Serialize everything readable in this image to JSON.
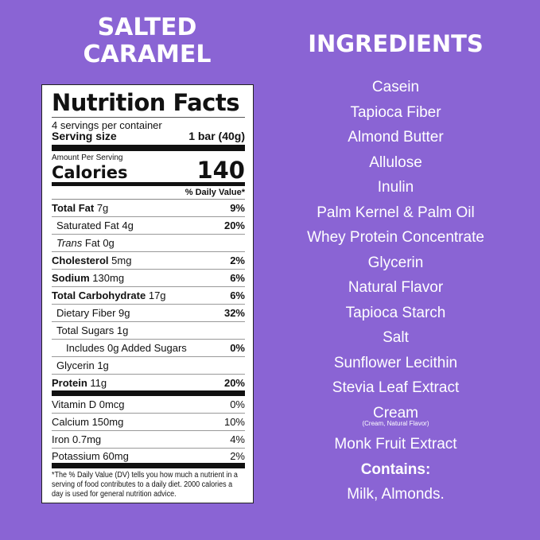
{
  "flavor": "SALTED CARAMEL",
  "label": {
    "title": "Nutrition Facts",
    "servings": "4 servings per container",
    "serving_size_label": "Serving size",
    "serving_size": "1 bar (40g)",
    "amount_per_serving": "Amount Per Serving",
    "calories_label": "Calories",
    "calories": "140",
    "dv_header": "% Daily Value*",
    "rows": [
      {
        "name": "Total Fat",
        "amount": "7g",
        "dv": "9%"
      },
      {
        "name": "Saturated Fat",
        "amount": "4g",
        "dv": "20%"
      },
      {
        "name": "Trans",
        "name2": "Fat",
        "amount": "0g",
        "dv": ""
      },
      {
        "name": "Cholesterol",
        "amount": "5mg",
        "dv": "2%"
      },
      {
        "name": "Sodium",
        "amount": "130mg",
        "dv": "6%"
      },
      {
        "name": "Total Carbohydrate",
        "amount": "17g",
        "dv": "6%"
      },
      {
        "name": "Dietary Fiber",
        "amount": "9g",
        "dv": "32%"
      },
      {
        "name": "Total Sugars",
        "amount": "1g",
        "dv": ""
      },
      {
        "name": "Includes 0g Added Sugars",
        "amount": "",
        "dv": "0%"
      },
      {
        "name": "Glycerin",
        "amount": "1g",
        "dv": ""
      },
      {
        "name": "Protein",
        "amount": "11g",
        "dv": "20%"
      }
    ],
    "vitamins": [
      {
        "name": "Vitamin D 0mcg",
        "dv": "0%"
      },
      {
        "name": "Calcium 150mg",
        "dv": "10%"
      },
      {
        "name": "Iron 0.7mg",
        "dv": "4%"
      },
      {
        "name": "Potassium 60mg",
        "dv": "2%"
      }
    ],
    "footnote": "*The % Daily Value (DV) tells you how much a nutrient in a serving of food contributes to a daily diet. 2000 calories a day is used for general nutrition advice."
  },
  "ingredients": {
    "title": "INGREDIENTS",
    "items": [
      "Casein",
      "Tapioca Fiber",
      "Almond Butter",
      "Allulose",
      "Inulin",
      "Palm Kernel & Palm Oil",
      "Whey Protein Concentrate",
      "Glycerin",
      "Natural Flavor",
      "Tapioca Starch",
      "Salt",
      "Sunflower Lecithin",
      "Stevia Leaf Extract",
      "Cream"
    ],
    "cream_note": "(Cream, Natural Flavor)",
    "last": "Monk Fruit Extract",
    "contains_label": "Contains:",
    "contains": "Milk, Almonds."
  },
  "colors": {
    "background": "#8a64d4"
  }
}
